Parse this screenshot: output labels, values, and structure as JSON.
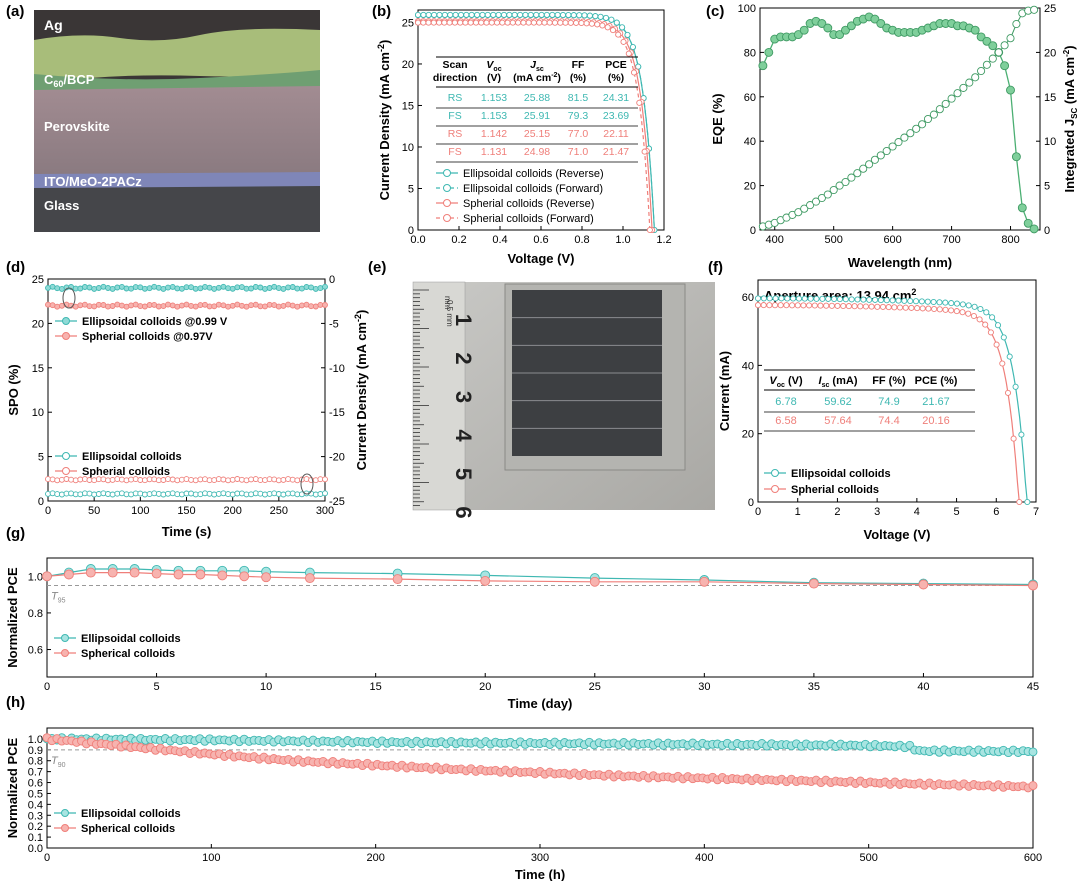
{
  "colors": {
    "teal": "#3fb8b2",
    "red": "#ef7f7a",
    "green": "#4caf73",
    "gray": "#888888"
  },
  "panels": {
    "a": {
      "label": "(a)",
      "layers": {
        "ag": "Ag",
        "c60_prefix": "C",
        "c60_sub": "60",
        "c60_suffix": "/BCP",
        "perovskite": "Perovskite",
        "ito": "ITO/MeO-2PACz",
        "glass": "Glass"
      }
    },
    "e": {
      "label": "(e)",
      "ruler_numbers": [
        "1",
        "2",
        "3",
        "4",
        "5",
        "6"
      ],
      "ruler_unit_mm": "mm",
      "ruler_unit_half": "0.5 mm"
    }
  },
  "chart_data": [
    {
      "id": "b",
      "label": "(b)",
      "type": "line",
      "xlabel": "Voltage (V)",
      "ylabel_main": "Current Density (mA cm",
      "ylabel_sup": "-2",
      "ylabel_close": ")",
      "xlim": [
        0,
        1.2
      ],
      "ylim": [
        0,
        26.5
      ],
      "xticks": [
        "0.0",
        "0.2",
        "0.4",
        "0.6",
        "0.8",
        "1.0",
        "1.2"
      ],
      "yticks": [
        "0",
        "5",
        "10",
        "15",
        "20",
        "25"
      ],
      "series": [
        {
          "name": "Ellipsoidal colloids (Reverse)",
          "color": "#3fb8b2",
          "voc": 1.153,
          "jsc": 25.88,
          "style": "solid"
        },
        {
          "name": "Ellipsoidal colloids (Forward)",
          "color": "#3fb8b2",
          "voc": 1.153,
          "jsc": 25.91,
          "style": "dashed"
        },
        {
          "name": "Spherial colloids (Reverse)",
          "color": "#ef7f7a",
          "voc": 1.142,
          "jsc": 25.15,
          "style": "solid"
        },
        {
          "name": "Spherial colloids (Forward)",
          "color": "#ef7f7a",
          "voc": 1.131,
          "jsc": 24.98,
          "style": "dashed"
        }
      ],
      "table": {
        "headers": [
          [
            "Scan",
            "direction"
          ],
          [
            "V",
            "(V)"
          ],
          [
            "J",
            "(mA cm"
          ],
          [
            "FF",
            "(%)"
          ],
          [
            "PCE",
            "(%)"
          ]
        ],
        "header_subs": [
          "",
          "oc",
          "sc",
          "",
          ""
        ],
        "rows": [
          {
            "color": "#3fb8b2",
            "cells": [
              "RS",
              "1.153",
              "25.88",
              "81.5",
              "24.31"
            ]
          },
          {
            "color": "#3fb8b2",
            "cells": [
              "FS",
              "1.153",
              "25.91",
              "79.3",
              "23.69"
            ]
          },
          {
            "color": "#ef7f7a",
            "cells": [
              "RS",
              "1.142",
              "25.15",
              "77.0",
              "22.11"
            ]
          },
          {
            "color": "#ef7f7a",
            "cells": [
              "FS",
              "1.131",
              "24.98",
              "71.0",
              "21.47"
            ]
          }
        ]
      }
    },
    {
      "id": "c",
      "label": "(c)",
      "type": "line",
      "xlabel": "Wavelength (nm)",
      "ylabel": "EQE (%)",
      "y2label_main": "Integrated J",
      "y2label_sub": "SC",
      "y2label_rest": " (mA cm",
      "y2label_sup": "-2",
      "y2label_close": ")",
      "xlim": [
        375,
        850
      ],
      "ylim": [
        0,
        100
      ],
      "y2lim": [
        0,
        25
      ],
      "xticks": [
        "400",
        "500",
        "600",
        "700",
        "800"
      ],
      "yticks": [
        "0",
        "20",
        "40",
        "60",
        "80",
        "100"
      ],
      "y2ticks": [
        "0",
        "5",
        "10",
        "15",
        "20",
        "25"
      ],
      "eqe_x": [
        380,
        390,
        400,
        410,
        420,
        430,
        440,
        450,
        460,
        470,
        480,
        490,
        500,
        510,
        520,
        530,
        540,
        550,
        560,
        570,
        580,
        590,
        600,
        610,
        620,
        630,
        640,
        650,
        660,
        670,
        680,
        690,
        700,
        710,
        720,
        730,
        740,
        750,
        760,
        770,
        780,
        790,
        800,
        810,
        820,
        830,
        840
      ],
      "eqe_y": [
        74,
        80,
        86,
        87,
        87,
        87,
        88,
        90,
        93,
        94,
        93,
        91,
        88,
        88,
        90,
        92,
        94,
        95,
        96,
        95,
        93,
        91,
        90,
        89,
        89,
        89,
        89,
        90,
        91,
        92,
        93,
        93,
        93,
        92,
        92,
        91,
        90,
        87,
        85,
        83,
        80,
        74,
        63,
        33,
        10,
        3,
        0.5
      ],
      "jsc_x": [
        380,
        390,
        400,
        410,
        420,
        430,
        440,
        450,
        460,
        470,
        480,
        490,
        500,
        510,
        520,
        530,
        540,
        550,
        560,
        570,
        580,
        590,
        600,
        610,
        620,
        630,
        640,
        650,
        660,
        670,
        680,
        690,
        700,
        710,
        720,
        730,
        740,
        750,
        760,
        770,
        780,
        790,
        800,
        810,
        820,
        830,
        840
      ],
      "jsc_y": [
        0.4,
        0.6,
        0.8,
        1.1,
        1.4,
        1.7,
        2.0,
        2.4,
        2.8,
        3.2,
        3.6,
        4.0,
        4.5,
        5.0,
        5.4,
        5.9,
        6.4,
        6.9,
        7.4,
        7.9,
        8.4,
        8.9,
        9.4,
        9.9,
        10.4,
        10.9,
        11.4,
        11.9,
        12.5,
        13.0,
        13.6,
        14.2,
        14.8,
        15.4,
        16.0,
        16.6,
        17.2,
        17.9,
        18.6,
        19.3,
        20.0,
        20.8,
        21.6,
        23.2,
        24.4,
        24.7,
        24.8
      ]
    },
    {
      "id": "d",
      "label": "(d)",
      "type": "line",
      "xlabel": "Time (s)",
      "ylabel": "SPO (%)",
      "y2label_main": "Current Density (mA cm",
      "y2label_sup": "-2",
      "y2label_close": ")",
      "xlim": [
        0,
        300
      ],
      "ylim": [
        0,
        25
      ],
      "y2lim": [
        -25,
        0
      ],
      "xticks": [
        "0",
        "50",
        "100",
        "150",
        "200",
        "250",
        "300"
      ],
      "yticks": [
        "0",
        "5",
        "10",
        "15",
        "20",
        "25"
      ],
      "y2ticks": [
        "-25",
        "-20",
        "-15",
        "-10",
        "-5",
        "0"
      ],
      "series": [
        {
          "name": "Ellipsoidal colloids @0.99 V",
          "color": "#3fb8b2",
          "spo": 24.0,
          "j_abs": 24.2
        },
        {
          "name": "Spherial colloids @0.97V",
          "color": "#ef7f7a",
          "spo": 22.0,
          "j_abs": 22.6
        }
      ],
      "legend_top": [
        "Ellipsoidal colloids  @0.99 V",
        "Spherial colloids @0.97V"
      ],
      "legend_bottom": [
        "Ellipsoidal colloids",
        "Spherial colloids"
      ]
    },
    {
      "id": "f",
      "label": "(f)",
      "type": "line",
      "xlabel": "Voltage (V)",
      "ylabel": "Current (mA)",
      "xlim": [
        0,
        7
      ],
      "ylim": [
        0,
        65
      ],
      "xticks": [
        "0",
        "1",
        "2",
        "3",
        "4",
        "5",
        "6",
        "7"
      ],
      "yticks": [
        "0",
        "20",
        "40",
        "60"
      ],
      "aperture_text": "Aperture area: 13.94 cm",
      "aperture_sup": "2",
      "series": [
        {
          "name": "Ellipsoidal colloids",
          "color": "#3fb8b2",
          "voc": 6.78,
          "isc": 59.62
        },
        {
          "name": "Spherial colloids",
          "color": "#ef7f7a",
          "voc": 6.58,
          "isc": 57.64
        }
      ],
      "table": {
        "headers": [
          "V",
          "I",
          "FF (%)",
          "PCE (%)"
        ],
        "header_subs": [
          "oc",
          "sc",
          "",
          ""
        ],
        "header_units": [
          " (V)",
          " (mA)",
          "",
          ""
        ],
        "rows": [
          {
            "color": "#3fb8b2",
            "cells": [
              "6.78",
              "59.62",
              "74.9",
              "21.67"
            ]
          },
          {
            "color": "#ef7f7a",
            "cells": [
              "6.58",
              "57.64",
              "74.4",
              "20.16"
            ]
          }
        ]
      }
    },
    {
      "id": "g",
      "label": "(g)",
      "type": "line",
      "xlabel": "Time (day)",
      "ylabel": "Normalized PCE",
      "xlim": [
        0,
        45
      ],
      "ylim": [
        0.45,
        1.1
      ],
      "xticks": [
        "0",
        "5",
        "10",
        "15",
        "20",
        "25",
        "30",
        "35",
        "40",
        "45"
      ],
      "yticks": [
        "0.6",
        "0.8",
        "1.0"
      ],
      "threshold": {
        "label": "T",
        "label_sub": "95",
        "value": 0.95
      },
      "series": [
        {
          "name": "Ellipsoidal colloids",
          "color": "#3fb8b2",
          "x": [
            0,
            1,
            2,
            3,
            4,
            5,
            6,
            7,
            8,
            9,
            10,
            12,
            16,
            20,
            25,
            30,
            35,
            40,
            45
          ],
          "y": [
            1.0,
            1.02,
            1.04,
            1.04,
            1.04,
            1.035,
            1.03,
            1.03,
            1.03,
            1.03,
            1.025,
            1.02,
            1.015,
            1.005,
            0.99,
            0.98,
            0.965,
            0.96,
            0.955
          ]
        },
        {
          "name": "Spherical colloids",
          "color": "#ef7f7a",
          "x": [
            0,
            1,
            2,
            3,
            4,
            5,
            6,
            7,
            8,
            9,
            10,
            12,
            16,
            20,
            25,
            30,
            35,
            40,
            45
          ],
          "y": [
            1.0,
            1.01,
            1.02,
            1.02,
            1.02,
            1.015,
            1.01,
            1.01,
            1.005,
            1.0,
            0.995,
            0.99,
            0.985,
            0.975,
            0.97,
            0.97,
            0.96,
            0.955,
            0.95
          ]
        }
      ]
    },
    {
      "id": "h",
      "label": "(h)",
      "type": "line",
      "xlabel": "Time (h)",
      "ylabel": "Normalized PCE",
      "xlim": [
        0,
        600
      ],
      "ylim": [
        0,
        1.1
      ],
      "xticks": [
        "0",
        "100",
        "200",
        "300",
        "400",
        "500",
        "600"
      ],
      "yticks": [
        "0.0",
        "0.1",
        "0.2",
        "0.3",
        "0.4",
        "0.5",
        "0.6",
        "0.7",
        "0.8",
        "0.9",
        "1.0"
      ],
      "threshold": {
        "label": "T",
        "label_sub": "90",
        "value": 0.9
      },
      "series": [
        {
          "name": "Ellipsoidal colloids",
          "color": "#3fb8b2",
          "x": [
            0,
            100,
            200,
            300,
            400,
            500,
            525,
            530,
            600
          ],
          "y": [
            1.0,
            0.99,
            0.97,
            0.96,
            0.95,
            0.94,
            0.93,
            0.89,
            0.885
          ]
        },
        {
          "name": "Spherical colloids",
          "color": "#ef7f7a",
          "x": [
            0,
            50,
            100,
            150,
            200,
            250,
            300,
            350,
            400,
            450,
            500,
            550,
            600
          ],
          "y": [
            1.0,
            0.93,
            0.86,
            0.8,
            0.76,
            0.72,
            0.69,
            0.66,
            0.64,
            0.62,
            0.6,
            0.58,
            0.56
          ]
        }
      ]
    }
  ]
}
